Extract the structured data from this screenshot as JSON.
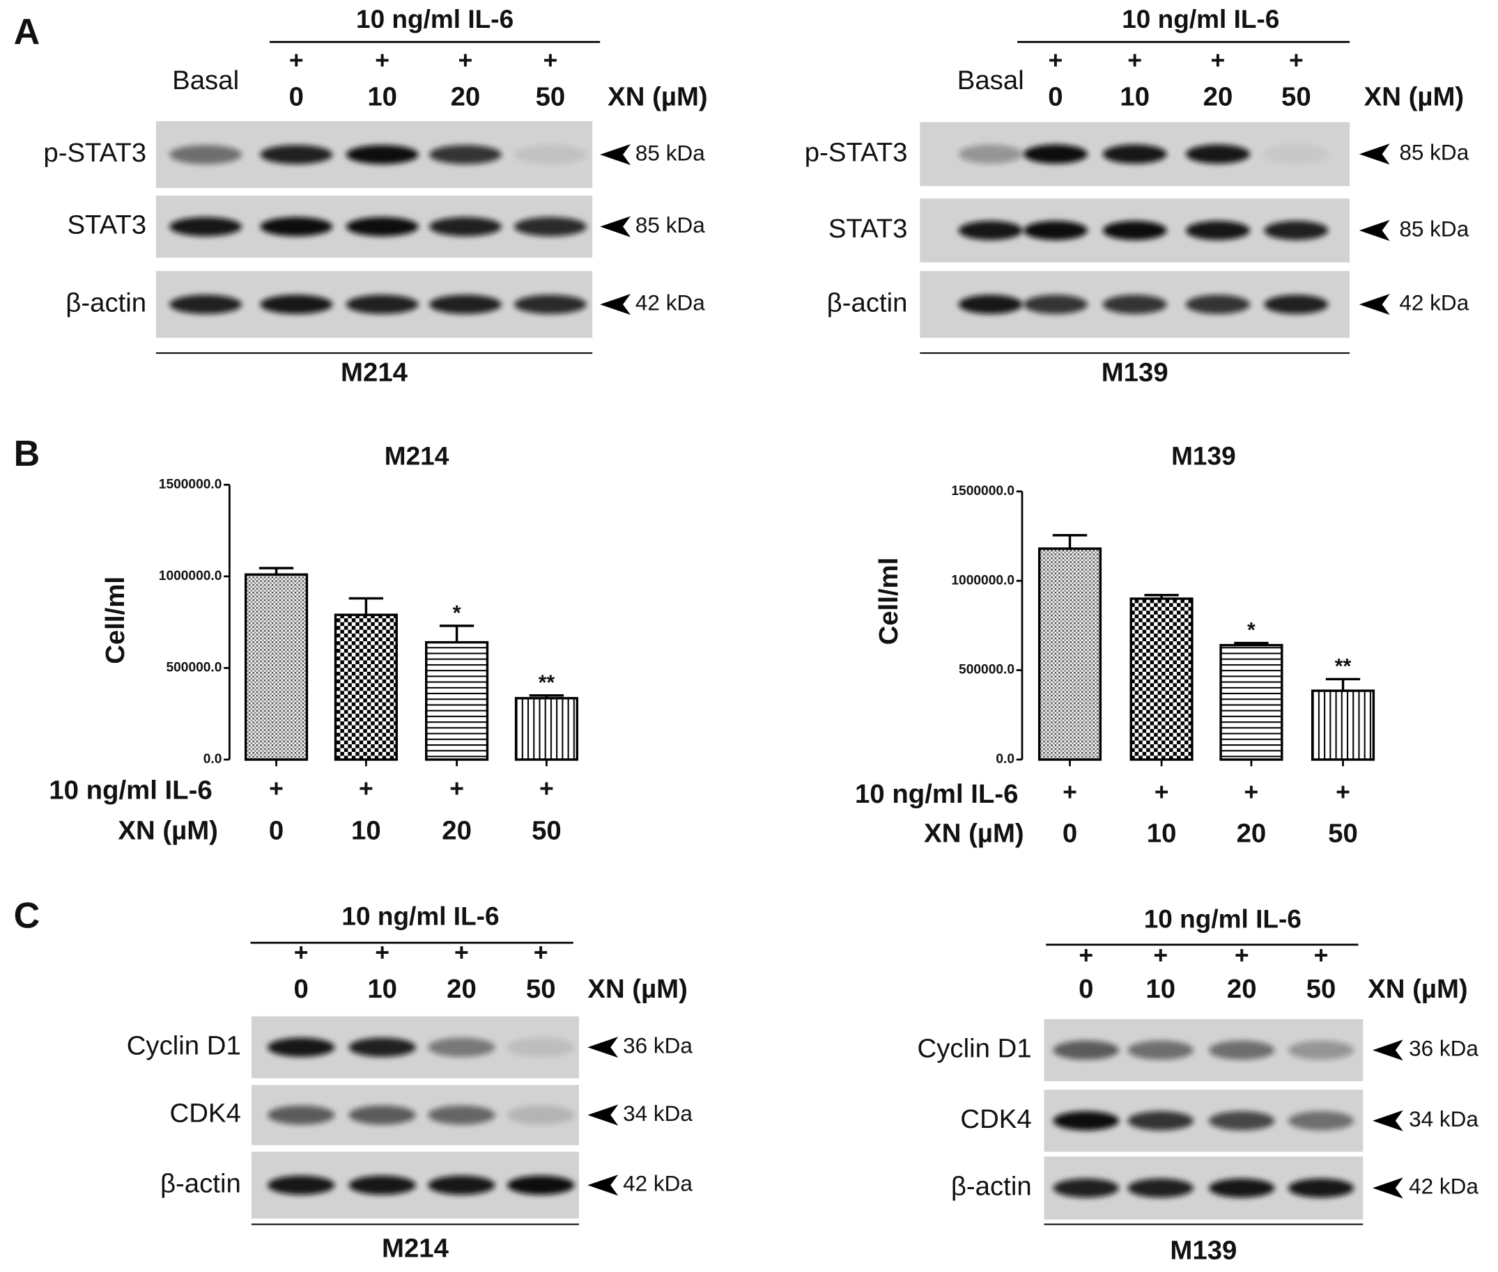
{
  "panel_a": {
    "label": "A",
    "blots": [
      {
        "treatment": "10 ng/ml IL-6",
        "basal": "Basal",
        "treatment_marks": [
          "+",
          "+",
          "+",
          "+"
        ],
        "doses": [
          "0",
          "10",
          "20",
          "50"
        ],
        "dose_label": "XN (µM)",
        "rows": [
          {
            "protein": "p-STAT3",
            "size": "85 kDa"
          },
          {
            "protein": "STAT3",
            "size": "85 kDa"
          },
          {
            "protein": "β-actin",
            "size": "42 kDa"
          }
        ],
        "cell_line": "M214"
      },
      {
        "treatment": "10 ng/ml IL-6",
        "basal": "Basal",
        "treatment_marks": [
          "+",
          "+",
          "+",
          "+"
        ],
        "doses": [
          "0",
          "10",
          "20",
          "50"
        ],
        "dose_label": "XN (µM)",
        "rows": [
          {
            "protein": "p-STAT3",
            "size": "85 kDa"
          },
          {
            "protein": "STAT3",
            "size": "85 kDa"
          },
          {
            "protein": "β-actin",
            "size": "42 kDa"
          }
        ],
        "cell_line": "M139"
      }
    ]
  },
  "panel_b": {
    "label": "B"
  },
  "panel_c": {
    "label": "C",
    "blots": [
      {
        "treatment": "10 ng/ml IL-6",
        "treatment_marks": [
          "+",
          "+",
          "+",
          "+"
        ],
        "doses": [
          "0",
          "10",
          "20",
          "50"
        ],
        "dose_label": "XN (µM)",
        "rows": [
          {
            "protein": "Cyclin D1",
            "size": "36 kDa"
          },
          {
            "protein": "CDK4",
            "size": "34 kDa"
          },
          {
            "protein": "β-actin",
            "size": "42 kDa"
          }
        ],
        "cell_line": "M214"
      },
      {
        "treatment": "10 ng/ml IL-6",
        "treatment_marks": [
          "+",
          "+",
          "+",
          "+"
        ],
        "doses": [
          "0",
          "10",
          "20",
          "50"
        ],
        "dose_label": "XN (µM)",
        "rows": [
          {
            "protein": "Cyclin D1",
            "size": "36 kDa"
          },
          {
            "protein": "CDK4",
            "size": "34 kDa"
          },
          {
            "protein": "β-actin",
            "size": "42 kDa"
          }
        ],
        "cell_line": "M139"
      }
    ]
  },
  "chart_data": [
    {
      "type": "bar",
      "title": "M214",
      "y_label": "Cell/ml",
      "categories": [
        "0",
        "10",
        "20",
        "50"
      ],
      "values": [
        1010000,
        790000,
        640000,
        335000
      ],
      "errors": [
        35000,
        90000,
        90000,
        15000
      ],
      "significance": [
        null,
        null,
        "*",
        "**"
      ],
      "patterns": [
        "dots",
        "checker",
        "hlines",
        "vlines"
      ],
      "color": "#000000",
      "treatment_label": "10 ng/ml IL-6",
      "treatment_marks": [
        "+",
        "+",
        "+",
        "+"
      ],
      "category_label": "XN (µM)",
      "ylim": [
        0,
        1500000
      ],
      "yticks": [
        {
          "value": 0,
          "label": "0.0"
        },
        {
          "value": 500000,
          "label": "500000.0"
        },
        {
          "value": 1000000,
          "label": "1000000.0"
        },
        {
          "value": 1500000,
          "label": "1500000.0"
        }
      ]
    },
    {
      "type": "bar",
      "title": "M139",
      "y_label": "Cell/ml",
      "categories": [
        "0",
        "10",
        "20",
        "50"
      ],
      "values": [
        1180000,
        900000,
        640000,
        385000
      ],
      "errors": [
        75000,
        20000,
        12000,
        65000
      ],
      "significance": [
        null,
        null,
        "*",
        "**"
      ],
      "patterns": [
        "dots",
        "checker",
        "hlines",
        "vlines"
      ],
      "color": "#000000",
      "treatment_label": "10 ng/ml IL-6",
      "treatment_marks": [
        "+",
        "+",
        "+",
        "+"
      ],
      "category_label": "XN (µM)",
      "ylim": [
        0,
        1500000
      ],
      "yticks": [
        {
          "value": 0,
          "label": "0.0"
        },
        {
          "value": 500000,
          "label": "500000.0"
        },
        {
          "value": 1000000,
          "label": "1000000.0"
        },
        {
          "value": 1500000,
          "label": "1500000.0"
        }
      ]
    }
  ]
}
